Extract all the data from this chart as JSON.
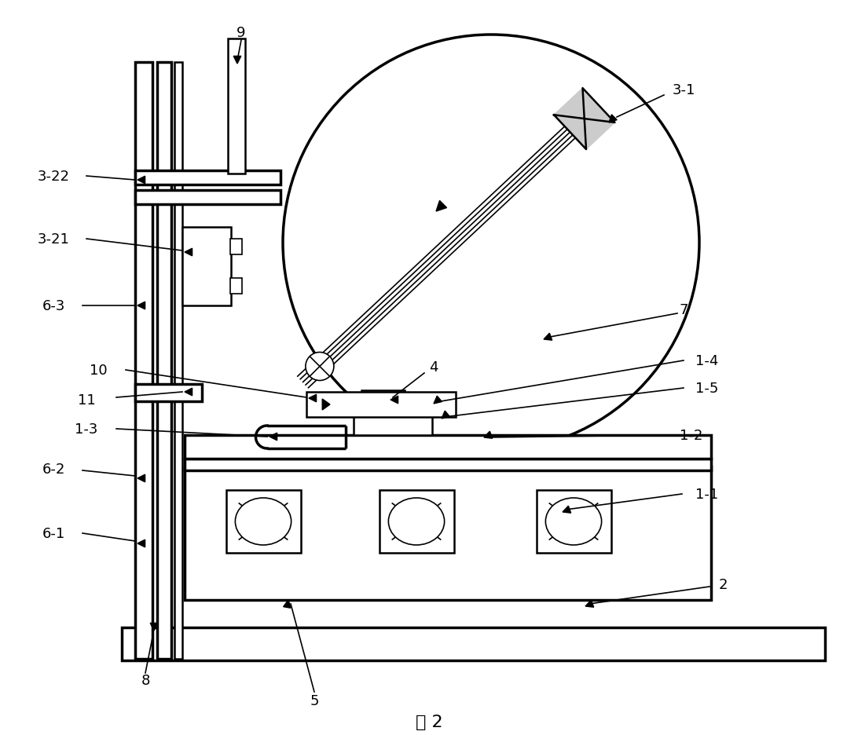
{
  "title": "图 2",
  "bg_color": "#ffffff",
  "line_color": "#000000",
  "fig_width": 10.92,
  "fig_height": 9.37,
  "dpi": 100
}
